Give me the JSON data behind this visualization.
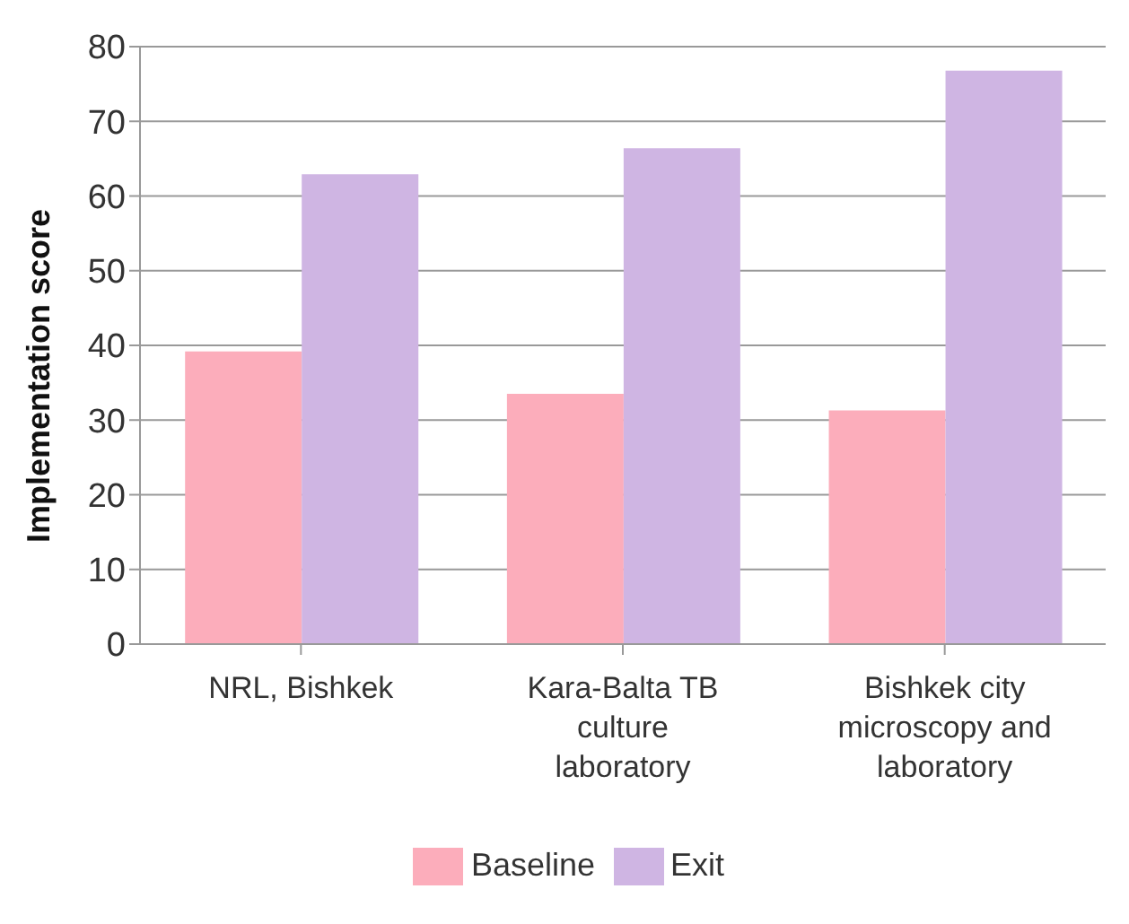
{
  "chart_data": {
    "type": "bar",
    "ylabel": "Implementation score",
    "categories": [
      "NRL, Bishkek",
      "Kara-Balta TB culture laboratory",
      "Bishkek city microscopy and laboratory"
    ],
    "series": [
      {
        "name": "Baseline",
        "color": "#fcadbb",
        "values": [
          39.2,
          33.5,
          31.3
        ]
      },
      {
        "name": "Exit",
        "color": "#cfb5e3",
        "values": [
          62.9,
          66.4,
          76.8
        ]
      }
    ],
    "ylim": [
      0,
      80
    ],
    "yticks": [
      0,
      10,
      20,
      30,
      40,
      50,
      60,
      70,
      80
    ],
    "grid": "y",
    "legend": "bottom"
  }
}
